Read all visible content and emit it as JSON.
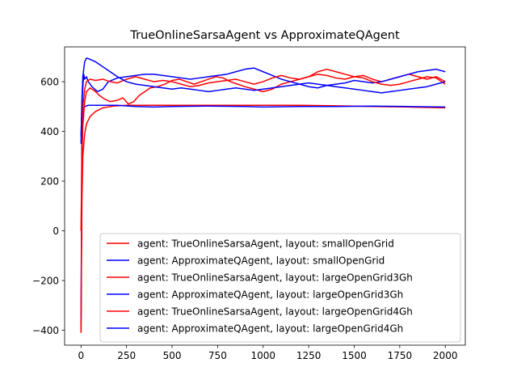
{
  "chart_data": {
    "type": "line",
    "title": "TrueOnlineSarsaAgent vs ApproximateQAgent",
    "xlabel": "",
    "ylabel": "",
    "xlim": [
      -90,
      2110
    ],
    "ylim": [
      -460,
      740
    ],
    "xticks": [
      0,
      250,
      500,
      750,
      1000,
      1250,
      1500,
      1750,
      2000
    ],
    "yticks": [
      -400,
      -200,
      0,
      200,
      400,
      600
    ],
    "grid": false,
    "legend_position": "lower-right",
    "series": [
      {
        "name": "agent: TrueOnlineSarsaAgent, layout: smallOpenGrid",
        "color": "#ff0000",
        "points": [
          [
            0,
            -410
          ],
          [
            5,
            120
          ],
          [
            10,
            300
          ],
          [
            20,
            390
          ],
          [
            30,
            430
          ],
          [
            50,
            460
          ],
          [
            80,
            480
          ],
          [
            120,
            495
          ],
          [
            180,
            502
          ],
          [
            250,
            505
          ],
          [
            400,
            505
          ],
          [
            600,
            505
          ],
          [
            800,
            505
          ],
          [
            1000,
            505
          ],
          [
            1200,
            505
          ],
          [
            1400,
            503
          ],
          [
            1600,
            500
          ],
          [
            1800,
            498
          ],
          [
            2000,
            495
          ]
        ]
      },
      {
        "name": "agent: ApproximateQAgent, layout: smallOpenGrid",
        "color": "#0000ff",
        "points": [
          [
            0,
            -400
          ],
          [
            5,
            450
          ],
          [
            10,
            490
          ],
          [
            20,
            500
          ],
          [
            40,
            505
          ],
          [
            100,
            505
          ],
          [
            200,
            505
          ],
          [
            300,
            500
          ],
          [
            400,
            498
          ],
          [
            500,
            500
          ],
          [
            700,
            502
          ],
          [
            900,
            500
          ],
          [
            1000,
            498
          ],
          [
            1200,
            500
          ],
          [
            1400,
            500
          ],
          [
            1600,
            502
          ],
          [
            1800,
            500
          ],
          [
            2000,
            498
          ]
        ]
      },
      {
        "name": "agent: TrueOnlineSarsaAgent, layout: largeOpenGrid3Gh",
        "color": "#ff0000",
        "points": [
          [
            0,
            0
          ],
          [
            5,
            300
          ],
          [
            10,
            420
          ],
          [
            20,
            520
          ],
          [
            30,
            560
          ],
          [
            50,
            575
          ],
          [
            80,
            560
          ],
          [
            100,
            545
          ],
          [
            130,
            530
          ],
          [
            160,
            520
          ],
          [
            200,
            525
          ],
          [
            230,
            535
          ],
          [
            260,
            510
          ],
          [
            290,
            520
          ],
          [
            320,
            545
          ],
          [
            350,
            560
          ],
          [
            380,
            575
          ],
          [
            420,
            580
          ],
          [
            460,
            590
          ],
          [
            500,
            605
          ],
          [
            540,
            610
          ],
          [
            580,
            600
          ],
          [
            620,
            590
          ],
          [
            660,
            600
          ],
          [
            700,
            610
          ],
          [
            740,
            620
          ],
          [
            780,
            615
          ],
          [
            820,
            600
          ],
          [
            860,
            590
          ],
          [
            900,
            580
          ],
          [
            950,
            570
          ],
          [
            1000,
            560
          ],
          [
            1050,
            570
          ],
          [
            1100,
            590
          ],
          [
            1150,
            600
          ],
          [
            1200,
            610
          ],
          [
            1250,
            620
          ],
          [
            1300,
            630
          ],
          [
            1350,
            625
          ],
          [
            1400,
            615
          ],
          [
            1450,
            610
          ],
          [
            1500,
            620
          ],
          [
            1550,
            625
          ],
          [
            1600,
            610
          ],
          [
            1650,
            600
          ],
          [
            1700,
            610
          ],
          [
            1750,
            620
          ],
          [
            1800,
            630
          ],
          [
            1850,
            620
          ],
          [
            1900,
            610
          ],
          [
            1950,
            620
          ],
          [
            2000,
            600
          ]
        ]
      },
      {
        "name": "agent: ApproximateQAgent, layout: largeOpenGrid3Gh",
        "color": "#0000ff",
        "points": [
          [
            0,
            380
          ],
          [
            5,
            500
          ],
          [
            10,
            580
          ],
          [
            15,
            630
          ],
          [
            20,
            610
          ],
          [
            30,
            620
          ],
          [
            40,
            600
          ],
          [
            60,
            580
          ],
          [
            90,
            560
          ],
          [
            120,
            570
          ],
          [
            150,
            600
          ],
          [
            200,
            615
          ],
          [
            250,
            620
          ],
          [
            300,
            625
          ],
          [
            350,
            630
          ],
          [
            400,
            630
          ],
          [
            450,
            625
          ],
          [
            500,
            620
          ],
          [
            550,
            615
          ],
          [
            600,
            610
          ],
          [
            650,
            615
          ],
          [
            700,
            620
          ],
          [
            750,
            625
          ],
          [
            800,
            630
          ],
          [
            850,
            640
          ],
          [
            900,
            650
          ],
          [
            950,
            655
          ],
          [
            1000,
            640
          ],
          [
            1050,
            625
          ],
          [
            1100,
            610
          ],
          [
            1150,
            600
          ],
          [
            1200,
            590
          ],
          [
            1250,
            580
          ],
          [
            1300,
            575
          ],
          [
            1350,
            585
          ],
          [
            1400,
            590
          ],
          [
            1450,
            595
          ],
          [
            1500,
            605
          ],
          [
            1550,
            600
          ],
          [
            1600,
            595
          ],
          [
            1650,
            600
          ],
          [
            1700,
            610
          ],
          [
            1750,
            620
          ],
          [
            1800,
            630
          ],
          [
            1850,
            640
          ],
          [
            1900,
            645
          ],
          [
            1950,
            650
          ],
          [
            2000,
            640
          ]
        ]
      },
      {
        "name": "agent: TrueOnlineSarsaAgent, layout: largeOpenGrid4Gh",
        "color": "#ff0000",
        "points": [
          [
            0,
            -410
          ],
          [
            5,
            260
          ],
          [
            10,
            500
          ],
          [
            20,
            570
          ],
          [
            30,
            600
          ],
          [
            50,
            610
          ],
          [
            80,
            605
          ],
          [
            120,
            610
          ],
          [
            160,
            600
          ],
          [
            200,
            595
          ],
          [
            250,
            610
          ],
          [
            300,
            620
          ],
          [
            350,
            610
          ],
          [
            400,
            600
          ],
          [
            450,
            605
          ],
          [
            500,
            600
          ],
          [
            550,
            590
          ],
          [
            600,
            580
          ],
          [
            650,
            585
          ],
          [
            700,
            595
          ],
          [
            750,
            600
          ],
          [
            800,
            605
          ],
          [
            850,
            610
          ],
          [
            900,
            600
          ],
          [
            950,
            590
          ],
          [
            1000,
            600
          ],
          [
            1050,
            615
          ],
          [
            1100,
            625
          ],
          [
            1150,
            615
          ],
          [
            1200,
            610
          ],
          [
            1250,
            620
          ],
          [
            1300,
            640
          ],
          [
            1350,
            650
          ],
          [
            1400,
            640
          ],
          [
            1450,
            630
          ],
          [
            1500,
            620
          ],
          [
            1550,
            615
          ],
          [
            1600,
            600
          ],
          [
            1650,
            590
          ],
          [
            1700,
            585
          ],
          [
            1750,
            590
          ],
          [
            1800,
            600
          ],
          [
            1850,
            610
          ],
          [
            1900,
            620
          ],
          [
            1950,
            615
          ],
          [
            2000,
            590
          ]
        ]
      },
      {
        "name": "agent: ApproximateQAgent, layout: largeOpenGrid4Gh",
        "color": "#0000ff",
        "points": [
          [
            0,
            350
          ],
          [
            5,
            530
          ],
          [
            10,
            620
          ],
          [
            20,
            680
          ],
          [
            30,
            695
          ],
          [
            50,
            690
          ],
          [
            80,
            680
          ],
          [
            120,
            660
          ],
          [
            160,
            640
          ],
          [
            200,
            620
          ],
          [
            250,
            600
          ],
          [
            300,
            590
          ],
          [
            350,
            585
          ],
          [
            400,
            580
          ],
          [
            450,
            575
          ],
          [
            500,
            570
          ],
          [
            550,
            575
          ],
          [
            600,
            570
          ],
          [
            650,
            565
          ],
          [
            700,
            560
          ],
          [
            750,
            565
          ],
          [
            800,
            570
          ],
          [
            850,
            575
          ],
          [
            900,
            570
          ],
          [
            950,
            565
          ],
          [
            1000,
            570
          ],
          [
            1050,
            575
          ],
          [
            1100,
            580
          ],
          [
            1150,
            585
          ],
          [
            1200,
            590
          ],
          [
            1250,
            595
          ],
          [
            1300,
            590
          ],
          [
            1350,
            585
          ],
          [
            1400,
            580
          ],
          [
            1450,
            575
          ],
          [
            1500,
            570
          ],
          [
            1550,
            565
          ],
          [
            1600,
            560
          ],
          [
            1650,
            555
          ],
          [
            1700,
            560
          ],
          [
            1750,
            565
          ],
          [
            1800,
            570
          ],
          [
            1850,
            575
          ],
          [
            1900,
            580
          ],
          [
            1950,
            590
          ],
          [
            2000,
            600
          ]
        ]
      }
    ]
  }
}
